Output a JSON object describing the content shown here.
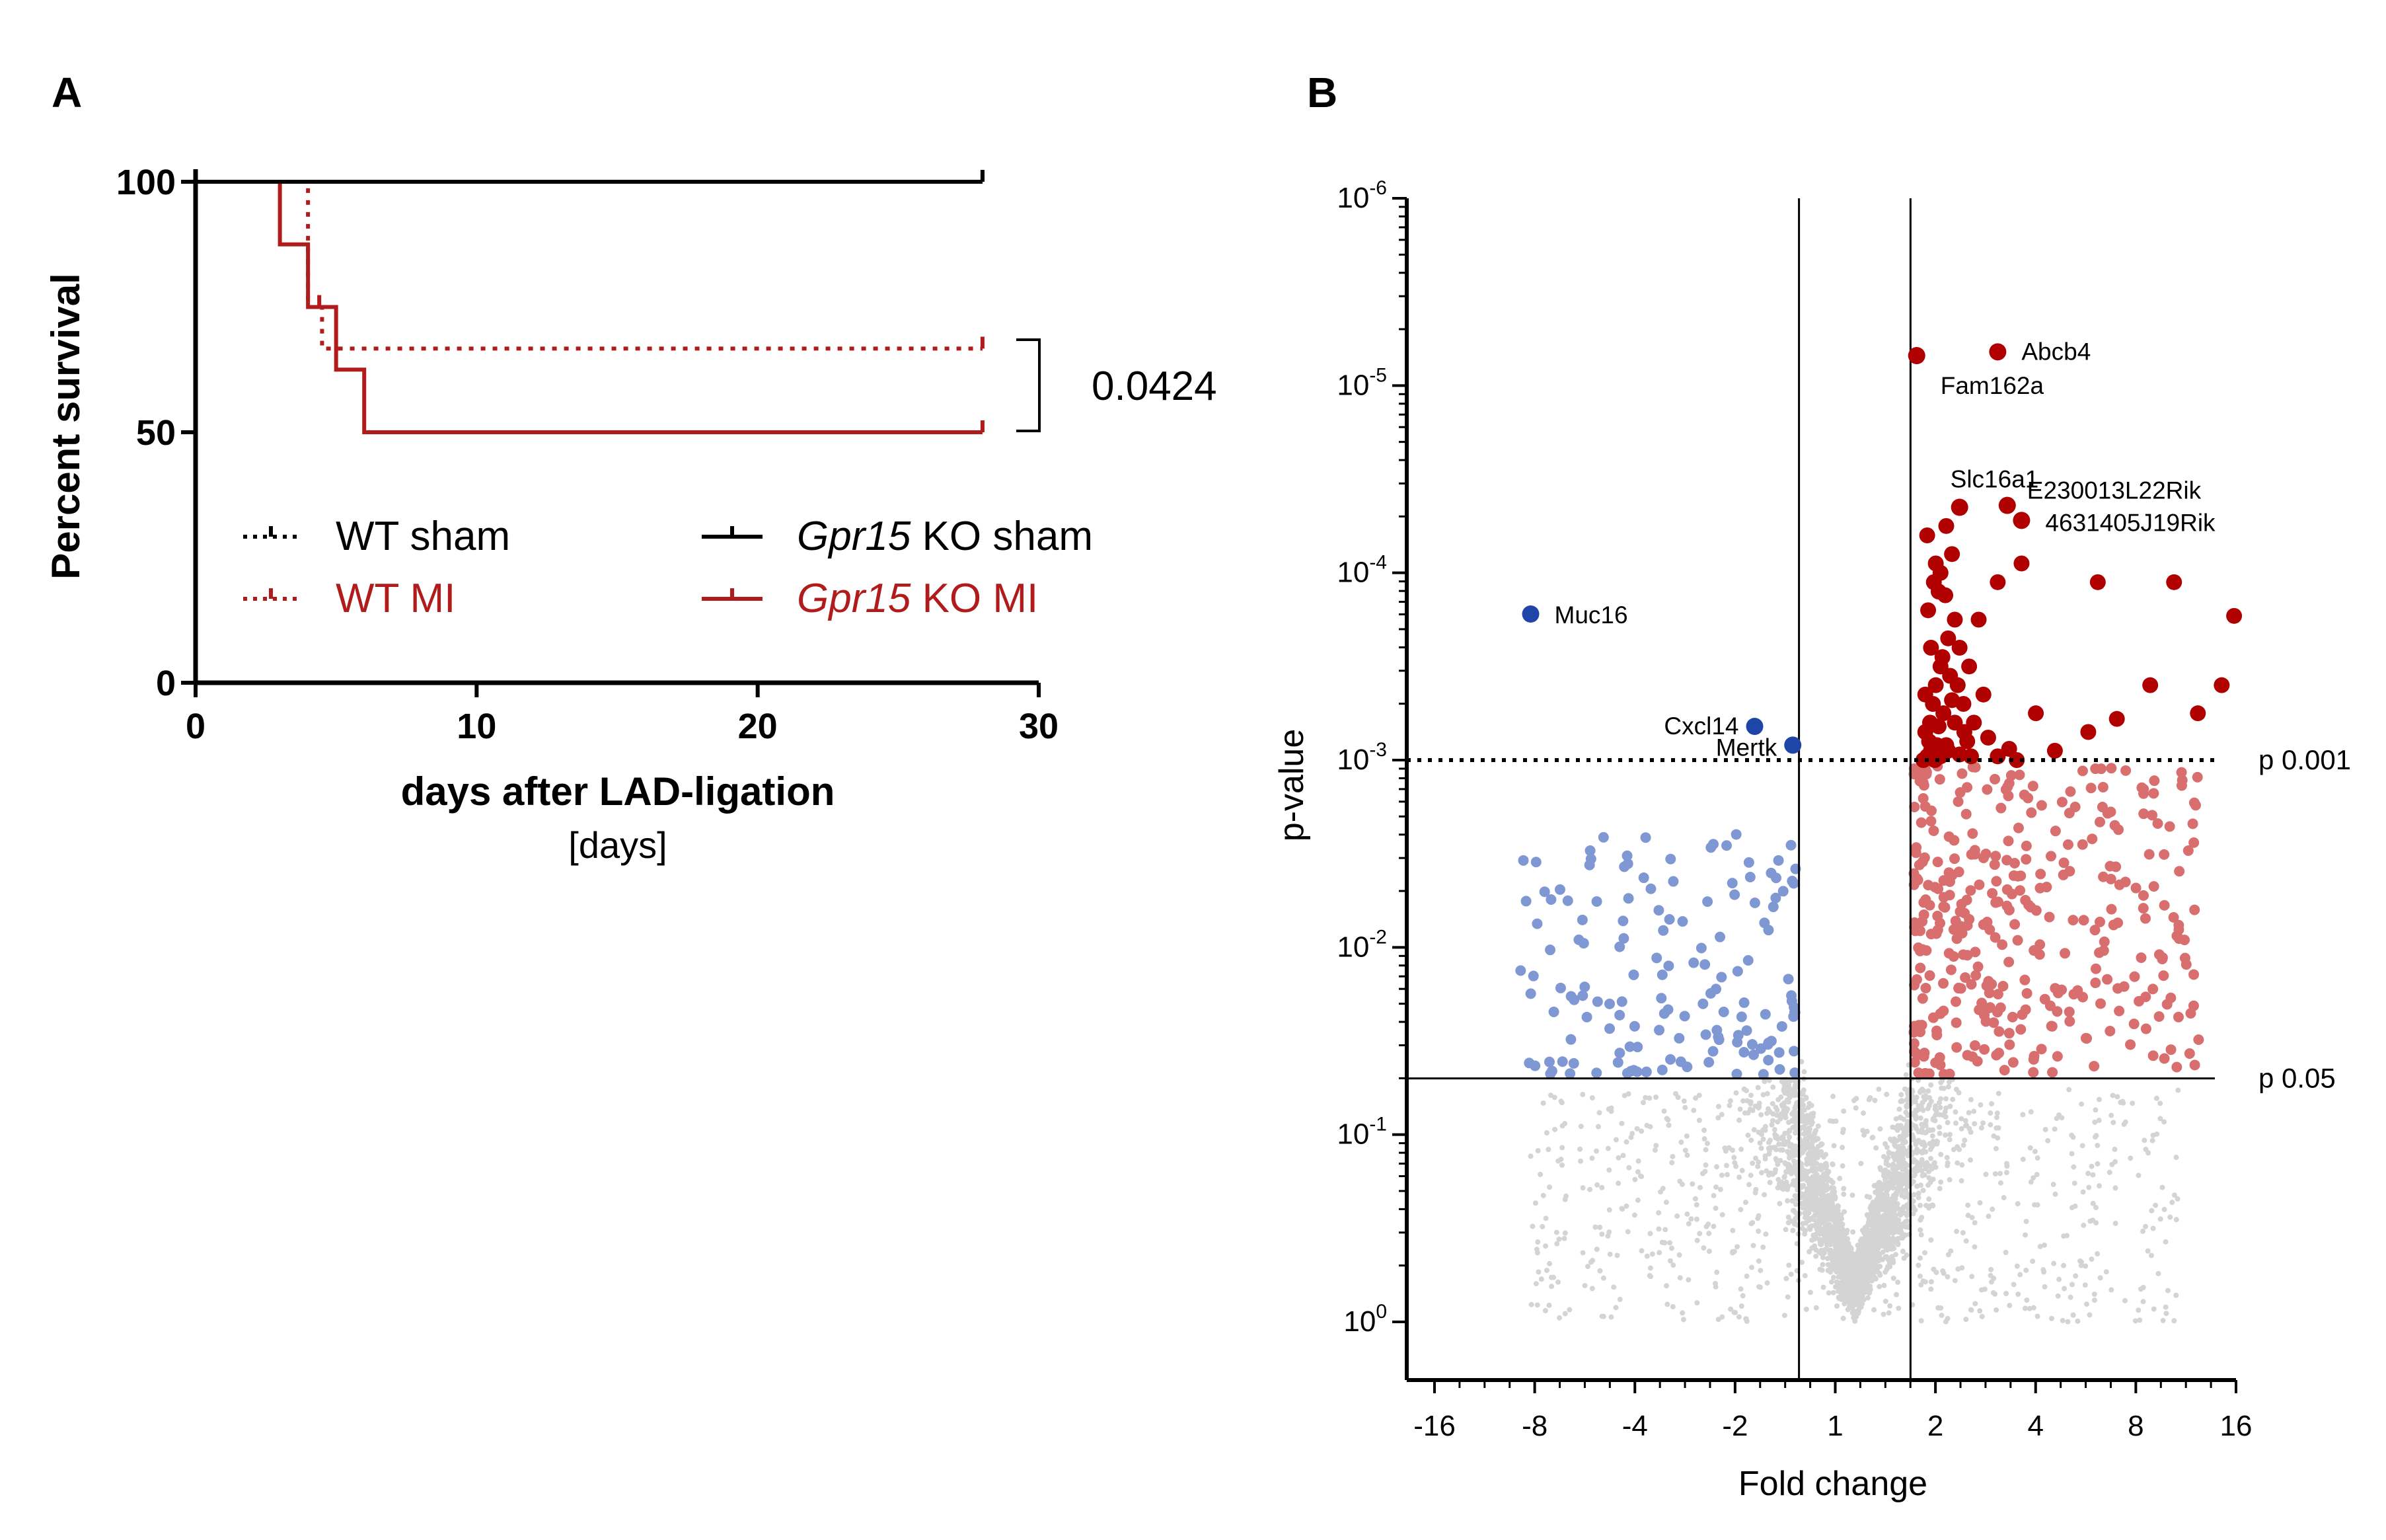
{
  "chart_data": [
    {
      "panel": "A",
      "type": "line",
      "subtype": "kaplan-meier",
      "ylabel": "Percent survival",
      "xlabel": "days after LAD-ligation",
      "xunit": "[days]",
      "xlim": [
        0,
        30
      ],
      "ylim": [
        0,
        100
      ],
      "xticks": [
        0,
        10,
        20,
        30
      ],
      "yticks": [
        0,
        50,
        100
      ],
      "pvalue_label": "0.0424",
      "series": [
        {
          "name": "WT sham",
          "italic_part": "",
          "color": "#000000",
          "dash": "dotted",
          "x": [
            0,
            28
          ],
          "y": [
            100,
            100
          ],
          "censor": [
            [
              28,
              100
            ]
          ]
        },
        {
          "name": "WT MI",
          "italic_part": "",
          "color": "#b01c1c",
          "dash": "dotted",
          "x": [
            0,
            4,
            4,
            4.5,
            4.5,
            28
          ],
          "y": [
            100,
            100,
            75,
            75,
            66.7,
            66.7
          ],
          "censor": [
            [
              4.4,
              75
            ],
            [
              28,
              66.7
            ]
          ]
        },
        {
          "name": "KO sham",
          "italic_part": "Gpr15",
          "color": "#000000",
          "dash": "solid",
          "x": [
            0,
            28
          ],
          "y": [
            100,
            100
          ],
          "censor": [
            [
              28,
              100
            ]
          ]
        },
        {
          "name": "KO MI",
          "italic_part": "Gpr15",
          "color": "#b01c1c",
          "dash": "solid",
          "x": [
            0,
            3,
            3,
            4,
            4,
            5,
            5,
            6,
            6,
            28
          ],
          "y": [
            100,
            100,
            87.5,
            87.5,
            75,
            75,
            62.5,
            62.5,
            50,
            50
          ],
          "censor": [
            [
              28,
              50
            ]
          ]
        }
      ]
    },
    {
      "panel": "B",
      "type": "scatter",
      "subtype": "volcano",
      "xlabel": "Fold change",
      "ylabel": "p-value",
      "x_ticks": [
        "-16",
        "-8",
        "-4",
        "-2",
        "1",
        "2",
        "4",
        "8",
        "16"
      ],
      "x_scale": "log2 (fold change)",
      "xlim_log2": [
        -4.7,
        4.0
      ],
      "ylim_log10p": [
        0,
        6
      ],
      "y_ticks": [
        {
          "base": "10",
          "exp": "-6"
        },
        {
          "base": "10",
          "exp": "-5"
        },
        {
          "base": "10",
          "exp": "-4"
        },
        {
          "base": "10",
          "exp": "-3"
        },
        {
          "base": "10",
          "exp": "-2"
        },
        {
          "base": "10",
          "exp": "-1"
        },
        {
          "base": "10",
          "exp": "0"
        }
      ],
      "vertical_lines_fold": [
        -1.5,
        1.5
      ],
      "thresholds": [
        {
          "label": "p 0.001",
          "neglog10p": 3,
          "style": "dotted"
        },
        {
          "label": "p 0.05",
          "neglog10p": 1.3,
          "style": "solid"
        }
      ],
      "colors": {
        "up_sig": "#b00000",
        "down_sig": "#1f45a8",
        "up_nom": "#d96e6e",
        "down_nom": "#7f98d4",
        "ns": "#d4d4d4"
      },
      "labeled_genes": [
        {
          "gene": "Abcb4",
          "log2fc": 1.5,
          "neglog10p": 5.18
        },
        {
          "gene": "Fam162a",
          "log2fc": 0.65,
          "neglog10p": 5.16
        },
        {
          "gene": "Slc16a1",
          "log2fc": 1.1,
          "neglog10p": 4.35
        },
        {
          "gene": "E230013L22Rik",
          "log2fc": 1.6,
          "neglog10p": 4.36
        },
        {
          "gene": "4631405J19Rik",
          "log2fc": 1.75,
          "neglog10p": 4.28
        },
        {
          "gene": "Muc16",
          "log2fc": -3.4,
          "neglog10p": 3.78
        },
        {
          "gene": "Cxcl14",
          "log2fc": -1.05,
          "neglog10p": 3.18
        },
        {
          "gene": "Mertk",
          "log2fc": -0.65,
          "neglog10p": 3.08
        }
      ],
      "up_significant_points": [
        [
          0.76,
          4.2
        ],
        [
          0.85,
          4.05
        ],
        [
          0.95,
          3.88
        ],
        [
          1.05,
          3.75
        ],
        [
          0.8,
          3.6
        ],
        [
          0.9,
          3.5
        ],
        [
          1.0,
          3.45
        ],
        [
          0.74,
          3.35
        ],
        [
          0.82,
          3.3
        ],
        [
          0.93,
          3.25
        ],
        [
          1.05,
          3.2
        ],
        [
          1.15,
          3.15
        ],
        [
          0.78,
          3.1
        ],
        [
          0.86,
          3.08
        ],
        [
          0.98,
          3.05
        ],
        [
          1.1,
          3.03
        ],
        [
          1.22,
          3.02
        ],
        [
          1.4,
          3.12
        ],
        [
          1.5,
          3.02
        ],
        [
          1.62,
          3.06
        ],
        [
          1.7,
          3.0
        ],
        [
          1.25,
          3.2
        ],
        [
          1.35,
          3.35
        ],
        [
          1.9,
          3.25
        ],
        [
          2.1,
          3.05
        ],
        [
          2.45,
          3.15
        ],
        [
          2.75,
          3.22
        ],
        [
          3.1,
          3.4
        ],
        [
          3.6,
          3.25
        ],
        [
          3.85,
          3.4
        ],
        [
          1.3,
          3.75
        ],
        [
          1.5,
          3.95
        ],
        [
          1.75,
          4.05
        ],
        [
          2.55,
          3.95
        ],
        [
          3.35,
          3.95
        ],
        [
          3.98,
          3.77
        ],
        [
          1.1,
          3.6
        ],
        [
          0.88,
          3.9
        ],
        [
          1.02,
          4.1
        ],
        [
          1.2,
          3.5
        ],
        [
          0.72,
          3.0
        ],
        [
          0.76,
          3.02
        ],
        [
          0.8,
          3.05
        ],
        [
          0.84,
          3.0
        ],
        [
          0.9,
          3.02
        ],
        [
          0.96,
          3.08
        ],
        [
          0.74,
          3.15
        ],
        [
          0.79,
          3.2
        ],
        [
          0.85,
          3.4
        ],
        [
          0.92,
          3.55
        ],
        [
          0.98,
          3.65
        ],
        [
          0.77,
          3.8
        ],
        [
          0.83,
          3.95
        ],
        [
          0.9,
          4.0
        ],
        [
          0.96,
          4.25
        ],
        [
          1.08,
          3.4
        ],
        [
          1.14,
          3.3
        ],
        [
          1.18,
          3.1
        ],
        [
          1.02,
          3.32
        ],
        [
          0.88,
          3.18
        ]
      ],
      "down_significant_points": [
        [
          -3.4,
          3.78
        ],
        [
          -1.05,
          3.18
        ],
        [
          -0.65,
          3.08
        ]
      ],
      "axis_labels_fold": [
        "-16",
        "-8",
        "-4",
        "-2",
        "1",
        "2",
        "4",
        "8",
        "16"
      ]
    }
  ],
  "panels": {
    "a": {
      "letter": "A"
    },
    "b": {
      "letter": "B"
    }
  }
}
